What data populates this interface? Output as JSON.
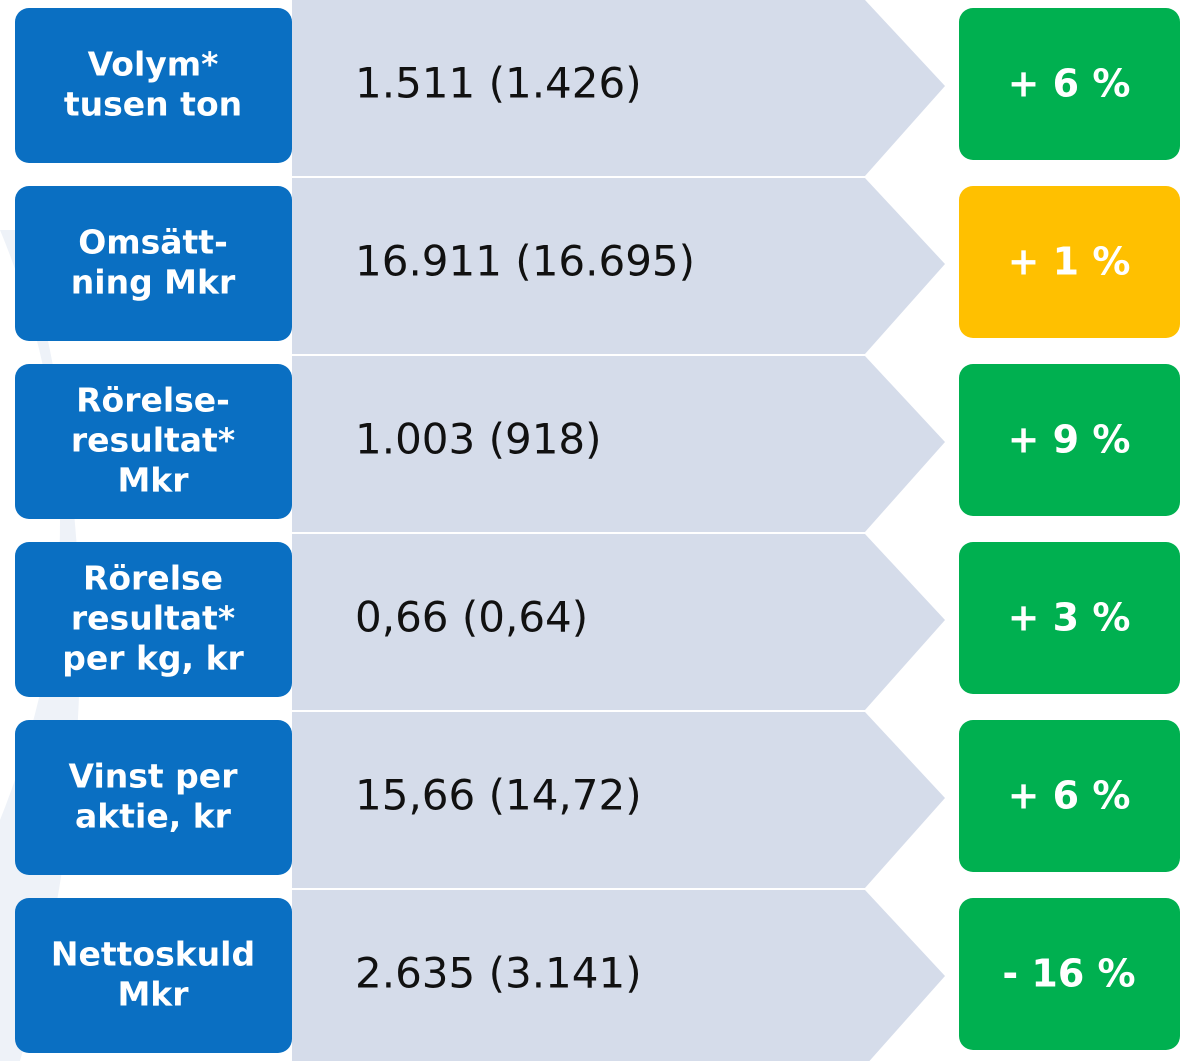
{
  "rows": [
    {
      "label": [
        "Volym*",
        "tusen ton"
      ],
      "value": "1.511 (1.426)",
      "change": "+ 6 %",
      "color": "#00b050"
    },
    {
      "label": [
        "Omsätt-",
        "ning Mkr"
      ],
      "value": "16.911 (16.695)",
      "change": "+ 1 %",
      "color": "#ffc000"
    },
    {
      "label": [
        "Rörelse-",
        "resultat*",
        "Mkr"
      ],
      "value": "1.003 (918)",
      "change": "+ 9 %",
      "color": "#00b050"
    },
    {
      "label": [
        "Rörelse",
        "resultat*",
        "per kg, kr"
      ],
      "value": "0,66 (0,64)",
      "change": "+ 3 %",
      "color": "#00b050"
    },
    {
      "label": [
        "Vinst per",
        "aktie, kr"
      ],
      "value": "15,66 (14,72)",
      "change": "+ 6 %",
      "color": "#00b050"
    },
    {
      "label": [
        "Nettoskuld",
        "Mkr"
      ],
      "value": "2.635 (3.141)",
      "change": "- 16 %",
      "color": "#00b050"
    }
  ]
}
